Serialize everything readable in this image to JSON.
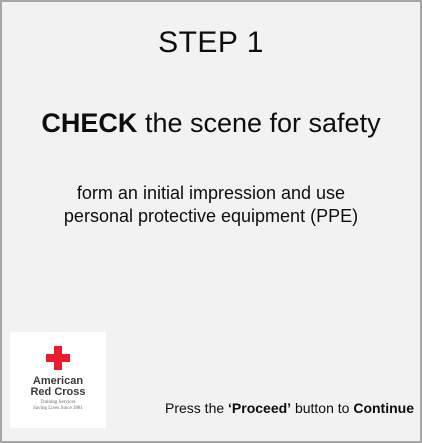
{
  "card": {
    "title": "STEP 1",
    "headline_bold": "CHECK",
    "headline_rest": " the scene for safety",
    "description_line1": "form an initial impression and use",
    "description_line2": "personal protective equipment (PPE)"
  },
  "logo": {
    "name_line1": "American",
    "name_line2": "Red Cross",
    "sub_line1": "Training Services",
    "sub_line2": "Saving Lives Since 1881",
    "cross_color": "#ed1b2e"
  },
  "instruction": {
    "prefix": "Press the ",
    "button_name": "‘Proceed’",
    "middle": " button to ",
    "action": "Continue"
  },
  "colors": {
    "background": "#f2f2f2",
    "border": "#a6a6a6",
    "text": "#0d0d0d"
  }
}
